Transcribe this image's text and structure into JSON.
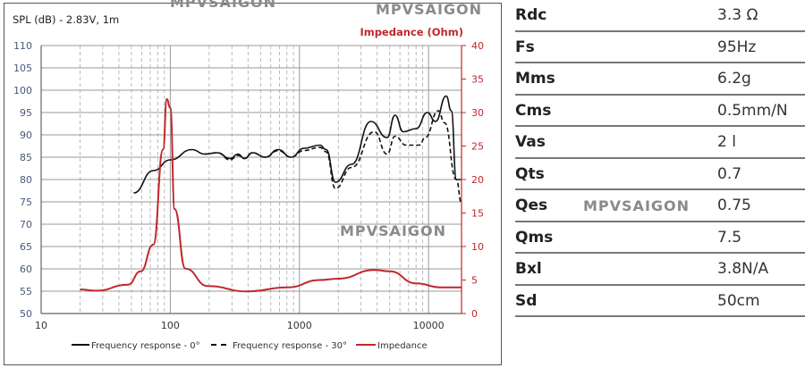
{
  "chart_data": {
    "type": "line",
    "title": "SPL (dB) - 2.83V, 1m",
    "secondary_title": "Impedance (Ohm)",
    "x_scale": "log",
    "xlim": [
      10,
      18000
    ],
    "x_ticks": [
      "10",
      "100",
      "1000",
      "10000"
    ],
    "ylim": [
      50,
      110
    ],
    "y_ticks": [
      "50",
      "55",
      "60",
      "65",
      "70",
      "75",
      "80",
      "85",
      "90",
      "95",
      "100",
      "105",
      "110"
    ],
    "y2lim": [
      0,
      40
    ],
    "y2_ticks": [
      "0",
      "5",
      "10",
      "15",
      "20",
      "25",
      "30",
      "35",
      "40"
    ],
    "grid": true,
    "legend_position": "bottom",
    "series": [
      {
        "name": "Frequency response - 0°",
        "axis": "left",
        "color": "#111111",
        "style": "solid",
        "x": [
          52,
          74,
          100,
          147,
          185,
          232,
          290,
          335,
          375,
          433,
          545,
          685,
          860,
          1085,
          1440,
          1610,
          1900,
          2530,
          3580,
          4770,
          5500,
          6360,
          8000,
          9800,
          11300,
          13700,
          15000,
          16400,
          17800
        ],
        "y": [
          77,
          82,
          84.4,
          86.7,
          85.7,
          86,
          84.7,
          85.7,
          84.7,
          86,
          85,
          86.7,
          85,
          87,
          87.7,
          86.7,
          79.4,
          83.4,
          93,
          89.4,
          94.4,
          90.7,
          91.4,
          95,
          93,
          98.7,
          95.4,
          80,
          80
        ]
      },
      {
        "name": "Frequency response - 30°",
        "axis": "left",
        "color": "#111111",
        "style": "dashed",
        "x": [
          185,
          232,
          290,
          335,
          375,
          433,
          545,
          685,
          860,
          1085,
          1440,
          1610,
          1900,
          2530,
          3800,
          4770,
          5500,
          6700,
          8500,
          9400,
          11900,
          13300,
          16400,
          18000
        ],
        "y": [
          85.7,
          86,
          84.4,
          85.4,
          84.7,
          86,
          85,
          86.5,
          85,
          86.5,
          87.2,
          86.2,
          78,
          82.7,
          90.7,
          85.7,
          89.7,
          87.7,
          87.7,
          89.4,
          95.4,
          92.7,
          80,
          74.7
        ]
      },
      {
        "name": "Impedance",
        "axis": "right",
        "color": "#c0272d",
        "style": "solid",
        "x": [
          20,
          26.6,
          47,
          59,
          74,
          88,
          94,
          100,
          108,
          131,
          195,
          390,
          810,
          1440,
          2000,
          3800,
          5000,
          8000,
          12500,
          18000
        ],
        "y": [
          3.6,
          3.4,
          4.3,
          6.3,
          10.3,
          24.5,
          32,
          30.7,
          15.6,
          6.7,
          4.1,
          3.3,
          3.9,
          5,
          5.2,
          6.5,
          6.3,
          4.5,
          3.9,
          3.9
        ]
      }
    ]
  },
  "watermark": "MPVSAIGON",
  "specs": [
    {
      "label": "Rdc",
      "value": "3.3 Ω"
    },
    {
      "label": "Fs",
      "value": "95Hz"
    },
    {
      "label": "Mms",
      "value": "6.2g"
    },
    {
      "label": "Cms",
      "value": "0.5mm/N"
    },
    {
      "label": "Vas",
      "value": "2 l"
    },
    {
      "label": "Qts",
      "value": "0.7"
    },
    {
      "label": "Qes",
      "value": "0.75"
    },
    {
      "label": "Qms",
      "value": "7.5"
    },
    {
      "label": "Bxl",
      "value": "3.8N/A"
    },
    {
      "label": "Sd",
      "value": "50cm"
    }
  ]
}
